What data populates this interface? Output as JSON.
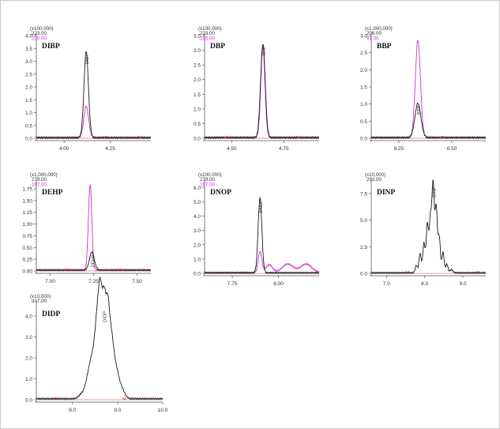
{
  "colors": {
    "axis": "#555555",
    "text": "#333333",
    "trace_black": "#1a1a1a",
    "trace_magenta": "#cc33cc",
    "baseline_red": "#dd3333"
  },
  "chart_data": [
    {
      "type": "line",
      "name": "DIBP",
      "scale": "(x100,000)",
      "ions": [
        "223.00",
        "205.00"
      ],
      "peak_label": "DIBP",
      "yticks": [
        "0.0",
        "0.5",
        "1.0",
        "1.5",
        "2.0",
        "2.5",
        "3.0",
        "3.5",
        "4.0"
      ],
      "xticks": [
        "4.00",
        "4.25"
      ],
      "xrange": [
        3.85,
        4.47
      ],
      "yrange": [
        0,
        4.0
      ],
      "xtick_values": [
        4.0,
        4.25
      ],
      "series": [
        {
          "color": "trace_black",
          "baseline": 0.02,
          "peaks": [
            {
              "x": 4.12,
              "h": 3.37,
              "w": 0.012
            }
          ]
        },
        {
          "color": "trace_magenta",
          "baseline": 0.03,
          "peaks": [
            {
              "x": 4.12,
              "h": 1.22,
              "w": 0.013
            }
          ]
        }
      ],
      "markers": [
        4.22,
        4.41
      ]
    },
    {
      "type": "line",
      "name": "DBP",
      "scale": "(x100,000)",
      "ions": [
        "223.00",
        "205.00"
      ],
      "peak_label": "DBP",
      "yticks": [
        "0.0",
        "0.5",
        "1.0",
        "1.5",
        "2.0",
        "2.5",
        "3.0",
        "3.5"
      ],
      "xticks": [
        "4.50",
        "4.75"
      ],
      "xrange": [
        4.37,
        4.92
      ],
      "yrange": [
        0,
        3.5
      ],
      "xtick_values": [
        4.5,
        4.75
      ],
      "series": [
        {
          "color": "trace_black",
          "baseline": 0.02,
          "peaks": [
            {
              "x": 4.65,
              "h": 3.2,
              "w": 0.011
            }
          ]
        },
        {
          "color": "trace_magenta",
          "baseline": 0.03,
          "peaks": [
            {
              "x": 4.65,
              "h": 3.1,
              "w": 0.01
            }
          ]
        }
      ],
      "markers": [
        4.47,
        4.82
      ]
    },
    {
      "type": "line",
      "name": "BBP",
      "scale": "(x1,000,000)",
      "ions": [
        "206.00",
        "91.00"
      ],
      "peak_label": "BBP",
      "yticks": [
        "0.0",
        "0.5",
        "1.0",
        "1.5",
        "2.0",
        "2.5",
        "3.0"
      ],
      "xticks": [
        "6.25",
        "6.50"
      ],
      "xrange": [
        6.12,
        6.66
      ],
      "yrange": [
        0,
        3.0
      ],
      "xtick_values": [
        6.25,
        6.5
      ],
      "series": [
        {
          "color": "trace_black",
          "baseline": 0.02,
          "peaks": [
            {
              "x": 6.34,
              "h": 1.0,
              "w": 0.014
            }
          ]
        },
        {
          "color": "trace_magenta",
          "baseline": 0.02,
          "peaks": [
            {
              "x": 6.34,
              "h": 2.85,
              "w": 0.012
            }
          ]
        }
      ],
      "markers": [
        6.45
      ]
    },
    {
      "type": "line",
      "name": "DEHP",
      "scale": "(x1,000,000)",
      "ions": [
        "279.00",
        "167.00"
      ],
      "peak_label": "DEHP",
      "yticks": [
        "0.00",
        "0.25",
        "0.50",
        "0.75",
        "1.00",
        "1.25",
        "1.50",
        "1.75"
      ],
      "xticks": [
        "7.00",
        "7.25",
        "7.50"
      ],
      "xrange": [
        6.92,
        7.58
      ],
      "yrange": [
        0,
        1.9
      ],
      "xtick_values": [
        7.0,
        7.25,
        7.5
      ],
      "series": [
        {
          "color": "trace_black",
          "baseline": 0.02,
          "peaks": [
            {
              "x": 7.24,
              "h": 0.38,
              "w": 0.014
            }
          ]
        },
        {
          "color": "trace_magenta",
          "baseline": 0.02,
          "peaks": [
            {
              "x": 7.23,
              "h": 1.82,
              "w": 0.01
            }
          ]
        }
      ],
      "markers": [
        7.1,
        7.4
      ]
    },
    {
      "type": "line",
      "name": "DNOP",
      "scale": "(x100,000)",
      "ions": [
        "279.00",
        "167.00"
      ],
      "peak_label": "DNOP",
      "yticks": [
        "0.0",
        "1.0",
        "2.0",
        "3.0",
        "4.0",
        "5.0",
        "6.0"
      ],
      "xticks": [
        "7.75",
        "8.00"
      ],
      "xrange": [
        7.6,
        8.22
      ],
      "yrange": [
        0,
        6.4
      ],
      "xtick_values": [
        7.75,
        8.0
      ],
      "series": [
        {
          "color": "trace_black",
          "baseline": 0.04,
          "peaks": [
            {
              "x": 7.9,
              "h": 5.25,
              "w": 0.01
            }
          ]
        },
        {
          "color": "trace_magenta",
          "baseline": 0.05,
          "peaks": [
            {
              "x": 7.9,
              "h": 1.45,
              "w": 0.01
            },
            {
              "x": 7.95,
              "h": 0.55,
              "w": 0.018
            },
            {
              "x": 8.05,
              "h": 0.6,
              "w": 0.03
            },
            {
              "x": 8.15,
              "h": 0.6,
              "w": 0.03
            }
          ]
        }
      ],
      "markers": []
    },
    {
      "type": "line",
      "name": "DINP",
      "scale": "(x10,000)",
      "ions": [
        "293.00"
      ],
      "peak_label": "DINP",
      "yticks": [
        "0.0",
        "2.5",
        "5.0",
        "7.5"
      ],
      "xticks": [
        "7.0",
        "8.0",
        "9.0"
      ],
      "xrange": [
        6.6,
        9.6
      ],
      "yrange": [
        0,
        8.6
      ],
      "xtick_values": [
        7.0,
        8.0,
        9.0
      ],
      "series": [
        {
          "color": "trace_black",
          "baseline": 0.05,
          "peaks": [
            {
              "x": 7.78,
              "h": 0.7,
              "w": 0.03
            },
            {
              "x": 7.88,
              "h": 1.8,
              "w": 0.03
            },
            {
              "x": 7.98,
              "h": 2.8,
              "w": 0.03
            },
            {
              "x": 8.07,
              "h": 4.6,
              "w": 0.03
            },
            {
              "x": 8.15,
              "h": 5.0,
              "w": 0.03
            },
            {
              "x": 8.22,
              "h": 8.3,
              "w": 0.03
            },
            {
              "x": 8.3,
              "h": 6.2,
              "w": 0.03
            },
            {
              "x": 8.38,
              "h": 3.4,
              "w": 0.03
            },
            {
              "x": 8.48,
              "h": 1.9,
              "w": 0.03
            },
            {
              "x": 8.58,
              "h": 0.8,
              "w": 0.03
            },
            {
              "x": 8.7,
              "h": 0.3,
              "w": 0.04
            }
          ]
        }
      ],
      "markers": [
        7.55,
        9.38
      ]
    },
    {
      "type": "line",
      "name": "DIDP",
      "scale": "(x10,000)",
      "ions": [
        "307.00"
      ],
      "peak_label": "DIDP",
      "yticks": [
        "0.0",
        "1.0",
        "2.0",
        "3.0",
        "4.0"
      ],
      "xticks": [
        "8.0",
        "9.0",
        "10.0"
      ],
      "xrange": [
        7.2,
        10.0
      ],
      "yrange": [
        0,
        4.6
      ],
      "xtick_values": [
        8.0,
        9.0,
        10.0
      ],
      "series": [
        {
          "color": "trace_black",
          "baseline": 0.05,
          "peaks": [
            {
              "x": 8.22,
              "h": 0.25,
              "w": 0.07
            },
            {
              "x": 8.35,
              "h": 0.9,
              "w": 0.06
            },
            {
              "x": 8.45,
              "h": 1.7,
              "w": 0.06
            },
            {
              "x": 8.55,
              "h": 3.3,
              "w": 0.05
            },
            {
              "x": 8.62,
              "h": 3.9,
              "w": 0.04
            },
            {
              "x": 8.7,
              "h": 4.3,
              "w": 0.04
            },
            {
              "x": 8.78,
              "h": 3.7,
              "w": 0.04
            },
            {
              "x": 8.86,
              "h": 2.6,
              "w": 0.05
            },
            {
              "x": 8.96,
              "h": 1.3,
              "w": 0.06
            },
            {
              "x": 9.08,
              "h": 0.5,
              "w": 0.07
            }
          ]
        }
      ],
      "markers": [
        7.65,
        9.15
      ]
    }
  ]
}
